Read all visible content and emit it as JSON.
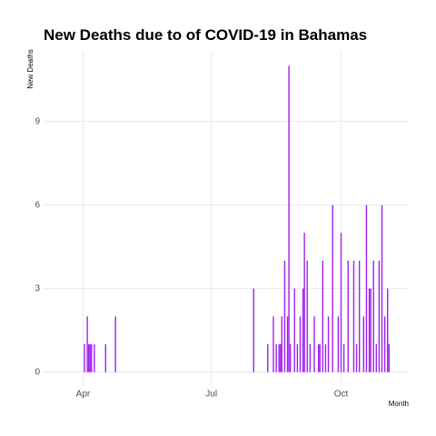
{
  "chart_data": {
    "type": "bar",
    "title": "New Deaths due to of COVID-19 in Bahamas",
    "y_label": "New Deaths",
    "x_label": "Month",
    "color": "#a020f0",
    "grid": true,
    "x": [
      93,
      95,
      96,
      97,
      98,
      100,
      108,
      115,
      213,
      223,
      227,
      229,
      231,
      232,
      233,
      235,
      237,
      238,
      239,
      242,
      244,
      246,
      248,
      249,
      251,
      253,
      256,
      259,
      260,
      262,
      264,
      266,
      269,
      273,
      275,
      277,
      280,
      284,
      286,
      288,
      291,
      293,
      295,
      296,
      298,
      300,
      302,
      304,
      306,
      308,
      309
    ],
    "values": [
      1,
      2,
      1,
      1,
      1,
      1,
      1,
      2,
      3,
      1,
      2,
      1,
      1,
      1,
      2,
      4,
      2,
      11,
      1,
      3,
      1,
      2,
      3,
      5,
      4,
      1,
      2,
      1,
      1,
      4,
      1,
      2,
      6,
      2,
      5,
      1,
      4,
      4,
      1,
      4,
      2,
      6,
      3,
      3,
      4,
      1,
      4,
      6,
      2,
      3,
      1
    ],
    "xlim": [
      64,
      323
    ],
    "xticks": [
      {
        "value": 92,
        "label": "Apr"
      },
      {
        "value": 183,
        "label": "Jul"
      },
      {
        "value": 275,
        "label": "Oct"
      }
    ],
    "ylim": [
      -0.5,
      11.5
    ],
    "yticks": [
      0,
      3,
      6,
      9
    ]
  }
}
